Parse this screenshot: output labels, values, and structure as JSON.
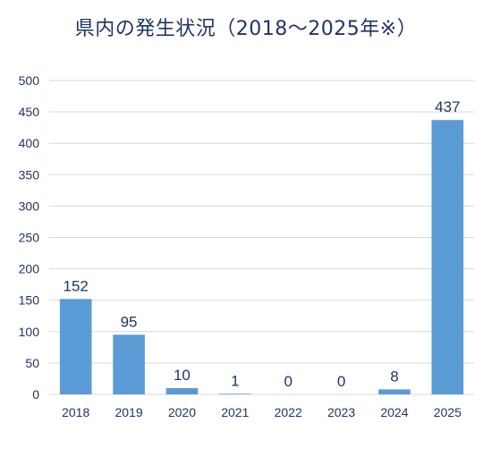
{
  "chart_data": {
    "type": "bar",
    "title": "県内の発生状況（2018～2025年※）",
    "categories": [
      "2018",
      "2019",
      "2020",
      "2021",
      "2022",
      "2023",
      "2024",
      "2025"
    ],
    "values": [
      152,
      95,
      10,
      1,
      0,
      0,
      8,
      437
    ],
    "data_labels": [
      "152",
      "95",
      "10",
      "1",
      "0",
      "0",
      "8",
      "437"
    ],
    "ylim": [
      0,
      500
    ],
    "yticks": [
      0,
      50,
      100,
      150,
      200,
      250,
      300,
      350,
      400,
      450,
      500
    ],
    "xlabel": "",
    "ylabel": "",
    "grid": true,
    "legend": "none",
    "bar_color": "#5b9bd5",
    "grid_color": "#d9d9d9",
    "text_color": "#1f3566"
  }
}
